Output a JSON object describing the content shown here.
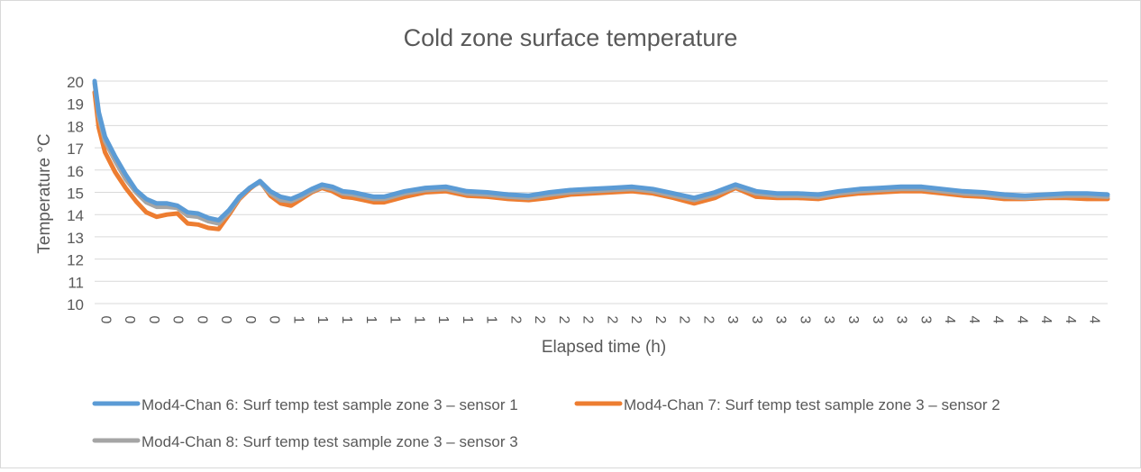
{
  "colors": {
    "series1": "#5b9bd5",
    "series2": "#ed7d31",
    "series3": "#a5a5a5",
    "grid": "#d9d9d9",
    "text": "#595959"
  },
  "chart_data": {
    "type": "line",
    "title": "Cold zone surface temperature",
    "xlabel": "Elapsed time (h)",
    "ylabel": "Temperature °C",
    "ylim": [
      10,
      20
    ],
    "yticks": [
      10,
      11,
      12,
      13,
      14,
      15,
      16,
      17,
      18,
      19,
      20
    ],
    "xlim": [
      0,
      4.9
    ],
    "x_tick_labels": [
      "0",
      "0",
      "0",
      "0",
      "0",
      "0",
      "0",
      "0",
      "1",
      "1",
      "1",
      "1",
      "1",
      "1",
      "1",
      "1",
      "1",
      "2",
      "2",
      "2",
      "2",
      "2",
      "2",
      "2",
      "2",
      "2",
      "3",
      "3",
      "3",
      "3",
      "3",
      "3",
      "3",
      "3",
      "3",
      "4",
      "4",
      "4",
      "4",
      "4",
      "4",
      "4"
    ],
    "grid": true,
    "legend_position": "bottom",
    "x": [
      0,
      0.02,
      0.05,
      0.1,
      0.15,
      0.2,
      0.25,
      0.3,
      0.35,
      0.4,
      0.45,
      0.5,
      0.55,
      0.6,
      0.65,
      0.7,
      0.75,
      0.8,
      0.85,
      0.9,
      0.95,
      1.0,
      1.05,
      1.1,
      1.15,
      1.2,
      1.25,
      1.3,
      1.35,
      1.4,
      1.5,
      1.6,
      1.7,
      1.8,
      1.9,
      2.0,
      2.1,
      2.2,
      2.3,
      2.4,
      2.5,
      2.6,
      2.7,
      2.8,
      2.9,
      3.0,
      3.1,
      3.2,
      3.3,
      3.4,
      3.5,
      3.6,
      3.7,
      3.8,
      3.9,
      4.0,
      4.1,
      4.2,
      4.3,
      4.4,
      4.5,
      4.6,
      4.7,
      4.8,
      4.9
    ],
    "series": [
      {
        "name": "Mod4-Chan 6: Surf temp test sample zone 3 – sensor 1",
        "values": [
          20.0,
          18.6,
          17.5,
          16.6,
          15.8,
          15.1,
          14.7,
          14.5,
          14.5,
          14.4,
          14.1,
          14.05,
          13.85,
          13.75,
          14.2,
          14.8,
          15.2,
          15.5,
          15.05,
          14.8,
          14.7,
          14.9,
          15.15,
          15.35,
          15.25,
          15.05,
          15.0,
          14.9,
          14.8,
          14.8,
          15.05,
          15.2,
          15.25,
          15.05,
          15.0,
          14.9,
          14.85,
          15.0,
          15.1,
          15.15,
          15.2,
          15.25,
          15.15,
          14.95,
          14.75,
          15.0,
          15.35,
          15.05,
          14.95,
          14.95,
          14.9,
          15.05,
          15.15,
          15.2,
          15.25,
          15.25,
          15.15,
          15.05,
          15.0,
          14.9,
          14.85,
          14.9,
          14.95,
          14.95,
          14.9
        ]
      },
      {
        "name": "Mod4-Chan 7: Surf temp test sample zone 3 – sensor 2",
        "values": [
          19.5,
          17.9,
          16.8,
          15.9,
          15.2,
          14.6,
          14.1,
          13.9,
          14.0,
          14.05,
          13.6,
          13.55,
          13.4,
          13.35,
          14.0,
          14.7,
          15.15,
          15.5,
          14.85,
          14.5,
          14.4,
          14.7,
          15.0,
          15.2,
          15.05,
          14.8,
          14.75,
          14.65,
          14.55,
          14.55,
          14.8,
          15.0,
          15.05,
          14.85,
          14.8,
          14.7,
          14.65,
          14.75,
          14.9,
          14.95,
          15.0,
          15.05,
          14.95,
          14.75,
          14.5,
          14.75,
          15.2,
          14.8,
          14.75,
          14.75,
          14.7,
          14.85,
          14.95,
          15.0,
          15.05,
          15.05,
          14.95,
          14.85,
          14.8,
          14.7,
          14.7,
          14.75,
          14.75,
          14.7,
          14.7
        ]
      },
      {
        "name": "Mod4-Chan 8: Surf temp test sample zone 3 – sensor 3",
        "values": [
          19.9,
          18.4,
          17.3,
          16.4,
          15.6,
          15.0,
          14.55,
          14.35,
          14.35,
          14.3,
          13.95,
          13.9,
          13.7,
          13.6,
          14.1,
          14.75,
          15.2,
          15.45,
          14.95,
          14.65,
          14.6,
          14.8,
          15.05,
          15.25,
          15.15,
          14.95,
          14.9,
          14.8,
          14.7,
          14.7,
          14.95,
          15.1,
          15.15,
          14.95,
          14.9,
          14.8,
          14.75,
          14.9,
          15.0,
          15.05,
          15.1,
          15.15,
          15.05,
          14.85,
          14.65,
          14.9,
          15.25,
          14.95,
          14.85,
          14.85,
          14.8,
          14.95,
          15.05,
          15.1,
          15.15,
          15.15,
          15.05,
          14.95,
          14.9,
          14.8,
          14.75,
          14.8,
          14.85,
          14.85,
          14.8
        ]
      }
    ]
  }
}
